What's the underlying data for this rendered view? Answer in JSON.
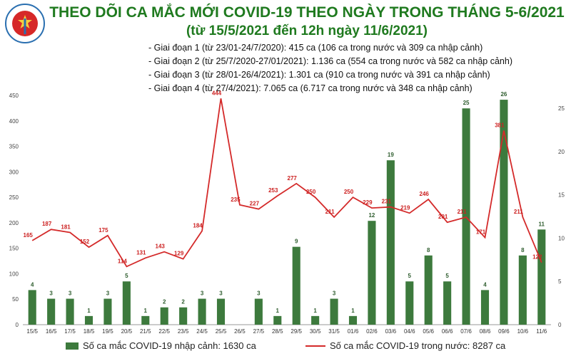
{
  "logo_text": "BỘ Y TẾ MINISTRY OF HEALTH",
  "title_line1": "THEO DÕI CA MẮC MỚI COVID-19 THEO NGÀY TRONG THÁNG 5-6/2021",
  "title_line2": "(từ 15/5/2021 đến 12h ngày 11/6/2021)",
  "phases": [
    "- Giai đoạn 1 (từ 23/01-24/7/2020): 415 ca (106 ca trong nước và 309 ca nhập cảnh)",
    "- Giai đoạn 2 (từ 25/7/2020-27/01/2021): 1.136 ca (554 ca trong nước và 582 ca nhập cảnh)",
    "- Giai đoạn 3 (từ 28/01-26/4/2021): 1.301 ca (910 ca trong nước và 391 ca nhập cảnh)",
    "- Giai đoạn 4 (từ 27/4/2021): 7.065 ca (6.717 ca trong nước và 348 ca nhập cảnh)"
  ],
  "legend": {
    "bar_label": "Số ca mắc COVID-19 nhập cảnh: 1630 ca",
    "line_label": "Số ca mắc COVID-19 trong nước: 8287 ca"
  },
  "colors": {
    "title": "#1f7a1f",
    "bar": "#3d7a3d",
    "line": "#d42a2a"
  },
  "chart_data": {
    "type": "bar+line",
    "categories": [
      "15/5",
      "16/5",
      "17/5",
      "18/5",
      "19/5",
      "20/5",
      "21/5",
      "22/5",
      "23/5",
      "24/5",
      "25/5",
      "26/5",
      "27/5",
      "28/5",
      "29/5",
      "30/5",
      "31/5",
      "01/6",
      "02/6",
      "03/6",
      "04/6",
      "05/6",
      "06/6",
      "07/6",
      "08/6",
      "09/6",
      "10/6",
      "11/6"
    ],
    "series": [
      {
        "name": "Số ca mắc COVID-19 nhập cảnh: 1630 ca",
        "type": "bar",
        "axis": "right",
        "values": [
          4,
          3,
          3,
          1,
          3,
          5,
          1,
          2,
          2,
          3,
          3,
          0,
          3,
          1,
          9,
          1,
          3,
          1,
          12,
          19,
          5,
          8,
          5,
          25,
          4,
          26,
          8,
          11
        ],
        "labels": [
          "4",
          "3",
          "3",
          "1",
          "3",
          "5",
          "1",
          "2",
          "2",
          "3",
          "3",
          "",
          "3",
          "1",
          "9",
          "1",
          "3",
          "1",
          "12",
          "19",
          "5",
          "8",
          "5",
          "25",
          "4",
          "26",
          "8",
          "11"
        ]
      },
      {
        "name": "Số ca mắc COVID-19 trong nước: 8287 ca",
        "type": "line",
        "axis": "left",
        "values": [
          165,
          187,
          181,
          152,
          175,
          114,
          131,
          143,
          129,
          184,
          444,
          235,
          227,
          253,
          277,
          250,
          211,
          250,
          229,
          231,
          219,
          246,
          201,
          211,
          171,
          381,
          211,
          122
        ],
        "labels": [
          "165",
          "187",
          "181",
          "152",
          "175",
          "114",
          "131",
          "143",
          "129",
          "184",
          "444",
          "235",
          "227",
          "253",
          "277",
          "250",
          "211",
          "250",
          "229",
          "231",
          "219",
          "246",
          "201",
          "211",
          "171",
          "381",
          "211",
          "122"
        ]
      }
    ],
    "y_left_ticks": [
      0,
      50,
      100,
      150,
      200,
      250,
      300,
      350,
      400,
      450
    ],
    "y_right_ticks": [
      0,
      5,
      10,
      15,
      20,
      25
    ],
    "ylim_left": [
      0,
      450
    ],
    "ylim_right": [
      0,
      26.5
    ],
    "grid": false,
    "legend_position": "bottom"
  }
}
